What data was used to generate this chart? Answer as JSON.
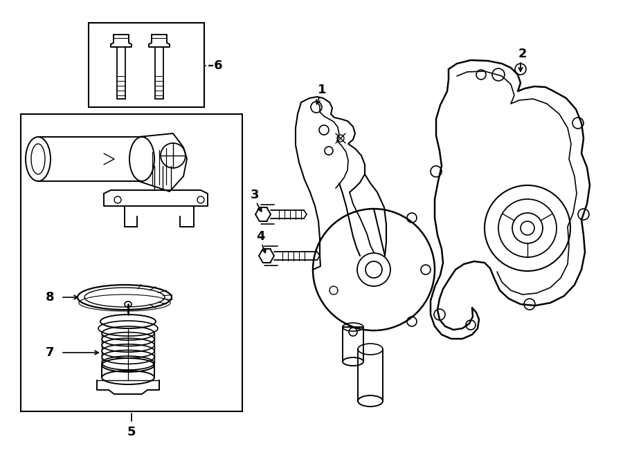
{
  "bg_color": "#ffffff",
  "line_color": "#000000",
  "lw": 1.3,
  "fig_w": 9.0,
  "fig_h": 6.61,
  "dpi": 100
}
